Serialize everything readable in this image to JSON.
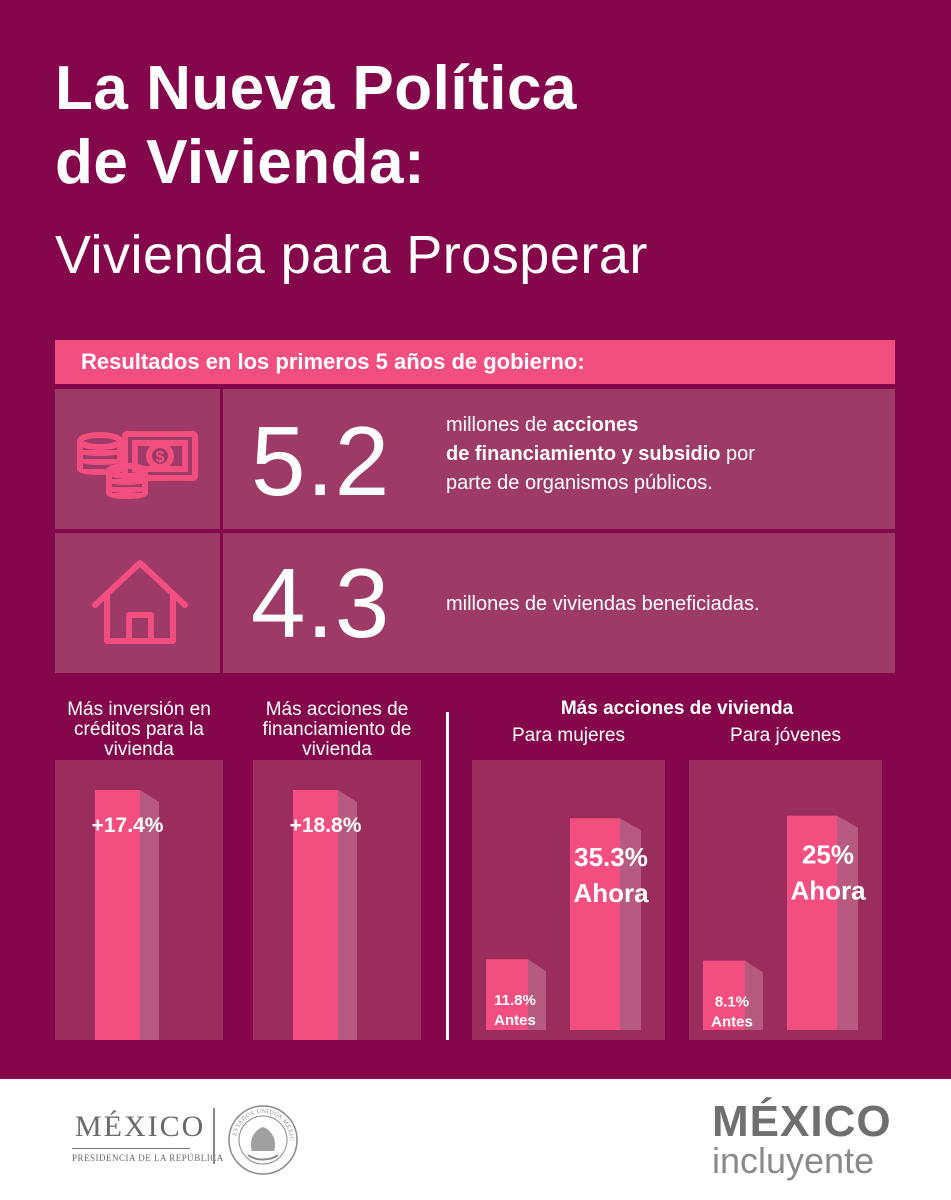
{
  "title": {
    "line1": "La Nueva Política",
    "line2": "de Vivienda:",
    "line3": "Vivienda para Prosperar"
  },
  "banner": "Resultados en los primeros 5 años de gobierno:",
  "stats": [
    {
      "icon": "money-coins-icon",
      "value": "5.2",
      "desc_a": "millones de ",
      "desc_b": "acciones",
      "desc_c": "de financiamiento y subsidio",
      "desc_d": " por",
      "desc_e": "parte de organismos públicos."
    },
    {
      "icon": "house-icon",
      "value": "4.3",
      "desc": "millones de viviendas beneficiadas."
    }
  ],
  "colors": {
    "background": "#84064b",
    "accent": "#f24e80",
    "cell": "#9d3a65",
    "panel": "#9a2d5c"
  },
  "chart_data": [
    {
      "type": "bar",
      "title": "Más inversión en créditos para la vivienda",
      "title_l1": "Más inversión en",
      "title_l2": "créditos para la",
      "title_l3": "vivienda",
      "categories": [
        ""
      ],
      "values": [
        17.4
      ],
      "labels": [
        "+17.4%"
      ]
    },
    {
      "type": "bar",
      "title": "Más acciones de financiamiento de vivienda",
      "title_l1": "Más acciones de",
      "title_l2": "financiamiento de",
      "title_l3": "vivienda",
      "categories": [
        ""
      ],
      "values": [
        18.8
      ],
      "labels": [
        "+18.8%"
      ]
    },
    {
      "type": "bar",
      "title": "Más acciones de vivienda",
      "subtitle": "Para mujeres",
      "categories": [
        "Antes",
        "Ahora"
      ],
      "values": [
        11.8,
        35.3
      ],
      "labels": [
        "11.8%",
        "35.3%"
      ],
      "ylim": [
        0,
        40
      ]
    },
    {
      "type": "bar",
      "title": "Más acciones de vivienda",
      "subtitle": "Para jóvenes",
      "categories": [
        "Antes",
        "Ahora"
      ],
      "values": [
        8.1,
        25
      ],
      "labels": [
        "8.1%",
        "25%"
      ],
      "ylim": [
        0,
        28
      ]
    }
  ],
  "footer": {
    "logo_title": "MÉXICO",
    "logo_sub": "PRESIDENCIA DE LA REPÚBLICA",
    "seal_text": "ESTADOS UNIDOS MEXICANOS",
    "brand1": "MÉXICO",
    "brand2": "incluyente"
  }
}
